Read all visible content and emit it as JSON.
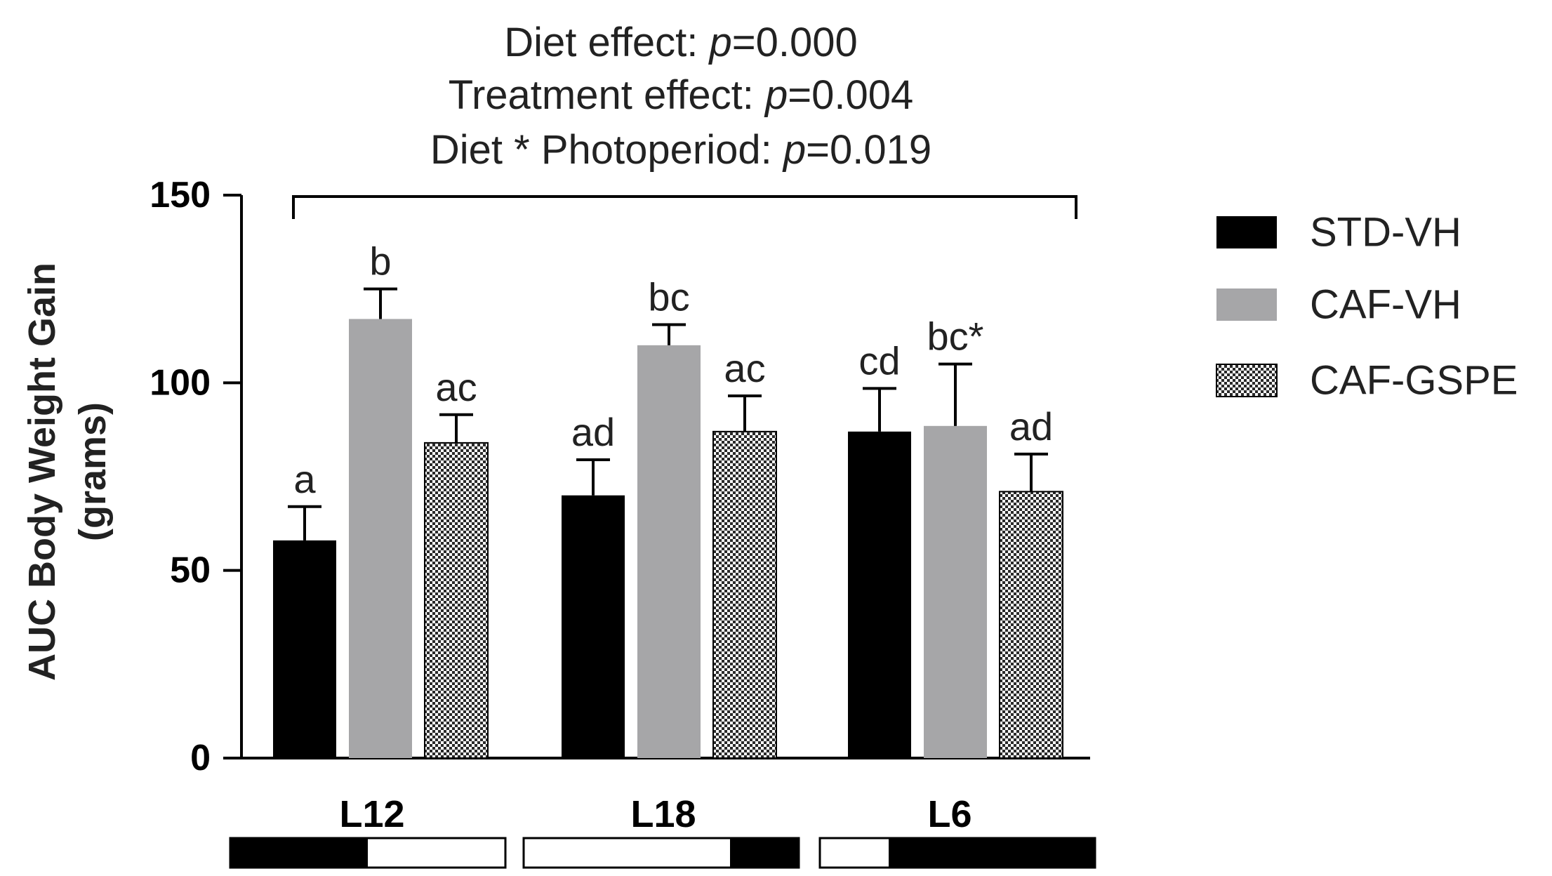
{
  "chart_data": {
    "type": "bar",
    "annotations": [
      {
        "prefix": "Diet effect: ",
        "italic": "p",
        "suffix": "=0.000"
      },
      {
        "prefix": "Treatment effect: ",
        "italic": "p",
        "suffix": "=0.004"
      },
      {
        "prefix": "Diet * Photoperiod: ",
        "italic": "p",
        "suffix": "=0.019"
      }
    ],
    "ylabel_line1": "AUC Body Weight Gain",
    "ylabel_line2": "(grams)",
    "ylim": [
      0,
      150
    ],
    "yticks": [
      "0",
      "50",
      "100",
      "150"
    ],
    "ytick_values": [
      0,
      50,
      100,
      150
    ],
    "categories": [
      "L12",
      "L18",
      "L6"
    ],
    "series": [
      {
        "name": "STD-VH",
        "color": "#000000",
        "pattern": "solid",
        "values": [
          58,
          70,
          87
        ],
        "errors": [
          9,
          9.5,
          11.5
        ],
        "labels": [
          "a",
          "ad",
          "cd"
        ]
      },
      {
        "name": "CAF-VH",
        "color": "#a6a6a8",
        "pattern": "solid",
        "values": [
          117,
          110,
          88.5
        ],
        "errors": [
          8,
          5.5,
          16.5
        ],
        "labels": [
          "b",
          "bc",
          "bc*"
        ]
      },
      {
        "name": "CAF-GSPE",
        "color": "#555555",
        "pattern": "checker",
        "values": [
          84,
          87,
          71
        ],
        "errors": [
          7.5,
          9.5,
          10
        ],
        "labels": [
          "ac",
          "ac",
          "ad"
        ]
      }
    ],
    "photoperiod": [
      {
        "category": "L12",
        "segments": [
          {
            "state": "dark",
            "hours": 12
          },
          {
            "state": "light",
            "hours": 12
          }
        ]
      },
      {
        "category": "L18",
        "segments": [
          {
            "state": "light",
            "hours": 18
          },
          {
            "state": "dark",
            "hours": 6
          }
        ]
      },
      {
        "category": "L6",
        "segments": [
          {
            "state": "light",
            "hours": 6
          },
          {
            "state": "dark",
            "hours": 18
          }
        ]
      }
    ],
    "legend_position": "right"
  }
}
